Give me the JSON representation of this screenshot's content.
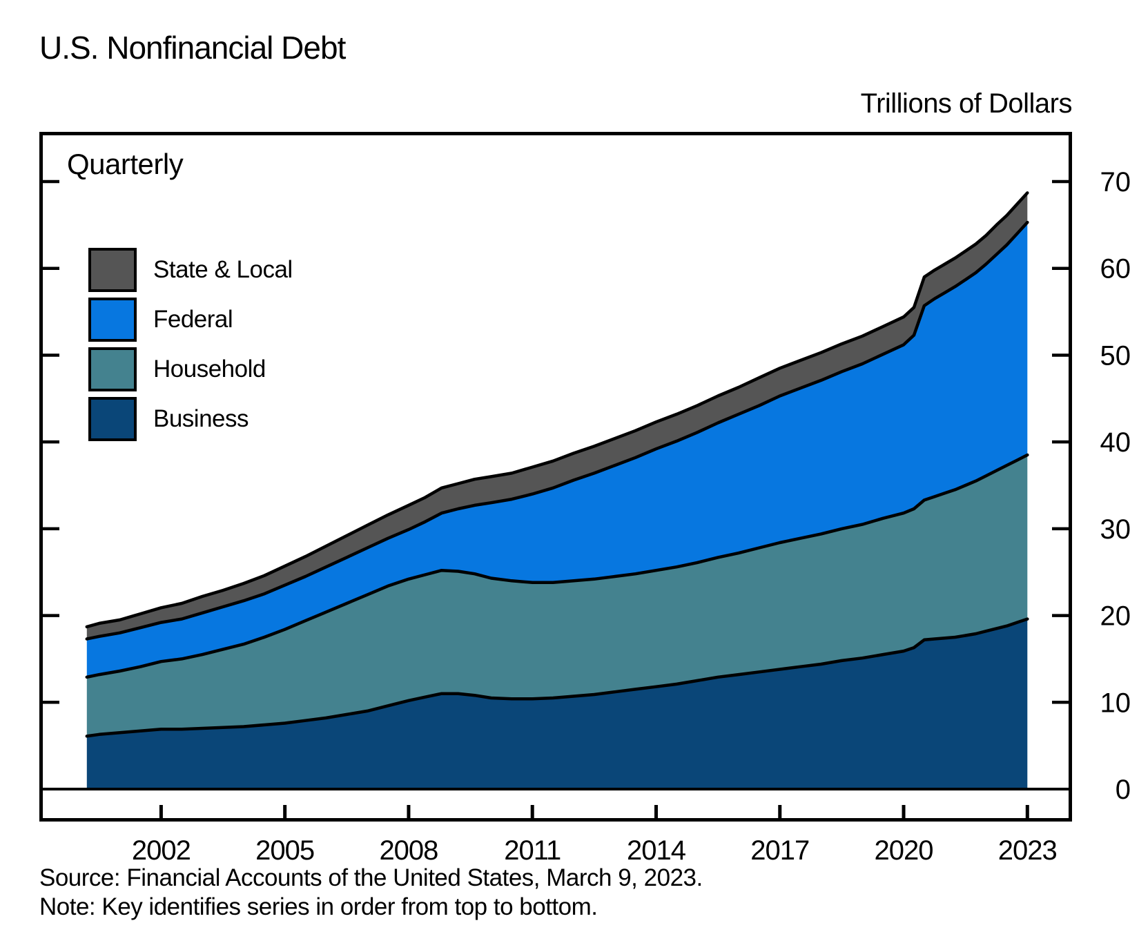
{
  "header": {
    "title": "U.S. Nonfinancial Debt",
    "unit_label": "Trillions of Dollars"
  },
  "plot": {
    "frequency_label": "Quarterly"
  },
  "legend": [
    {
      "label": "State & Local",
      "color": "#555555"
    },
    {
      "label": "Federal",
      "color": "#0777e0"
    },
    {
      "label": "Household",
      "color": "#44828f"
    },
    {
      "label": "Business",
      "color": "#0a4678"
    }
  ],
  "footer": {
    "source_line": "Source: Financial Accounts of the United States, March 9, 2023.",
    "note_line": "Note: Key identifies series in order from top to bottom."
  },
  "chart_data": {
    "type": "area",
    "stacked": true,
    "title": "U.S. Nonfinancial Debt",
    "ylabel": "Trillions of Dollars",
    "frequency": "Quarterly",
    "legend_position": "upper-left",
    "legend_note": "Key identifies series in order from top to bottom",
    "grid": false,
    "y_ticks": [
      0,
      10,
      20,
      30,
      40,
      50,
      60,
      70
    ],
    "x_ticks": [
      2002,
      2005,
      2008,
      2011,
      2014,
      2017,
      2020,
      2023
    ],
    "y_range_axis": [
      0,
      75
    ],
    "x_range_axis": [
      1999.1,
      2024.1
    ],
    "x_units": "year (quarterly observations, 2000Q1–2022Q4)",
    "y_units": "trillions of dollars",
    "x": [
      2000.2,
      2000.5,
      2001,
      2001.5,
      2002,
      2002.5,
      2003,
      2003.5,
      2004,
      2004.5,
      2005,
      2005.5,
      2006,
      2006.5,
      2007,
      2007.5,
      2008,
      2008.4,
      2008.8,
      2009.2,
      2009.6,
      2010,
      2010.5,
      2011,
      2011.5,
      2012,
      2012.5,
      2013,
      2013.5,
      2014,
      2014.5,
      2015,
      2015.5,
      2016,
      2016.5,
      2017,
      2017.5,
      2018,
      2018.5,
      2019,
      2019.5,
      2020,
      2020.25,
      2020.5,
      2020.75,
      2021,
      2021.25,
      2021.5,
      2021.75,
      2022,
      2022.25,
      2022.5,
      2022.75,
      2023
    ],
    "series": [
      {
        "name": "Business",
        "color": "#0a4678",
        "values": [
          6.1,
          6.3,
          6.5,
          6.7,
          6.9,
          6.9,
          7.0,
          7.1,
          7.2,
          7.4,
          7.6,
          7.9,
          8.2,
          8.6,
          9.0,
          9.6,
          10.2,
          10.6,
          11.0,
          11.0,
          10.8,
          10.5,
          10.4,
          10.4,
          10.5,
          10.7,
          10.9,
          11.2,
          11.5,
          11.8,
          12.1,
          12.5,
          12.9,
          13.2,
          13.5,
          13.8,
          14.1,
          14.4,
          14.8,
          15.1,
          15.5,
          15.9,
          16.3,
          17.2,
          17.3,
          17.4,
          17.5,
          17.7,
          17.9,
          18.2,
          18.5,
          18.8,
          19.2,
          19.6
        ]
      },
      {
        "name": "Household",
        "color": "#44828f",
        "values": [
          6.8,
          6.9,
          7.1,
          7.4,
          7.8,
          8.1,
          8.5,
          9.0,
          9.5,
          10.1,
          10.8,
          11.5,
          12.2,
          12.8,
          13.4,
          13.8,
          14.0,
          14.1,
          14.2,
          14.1,
          14.0,
          13.8,
          13.6,
          13.4,
          13.3,
          13.3,
          13.3,
          13.3,
          13.3,
          13.4,
          13.5,
          13.6,
          13.8,
          14.0,
          14.3,
          14.6,
          14.8,
          15.0,
          15.2,
          15.4,
          15.7,
          15.9,
          16.0,
          16.1,
          16.4,
          16.7,
          17.0,
          17.3,
          17.6,
          17.9,
          18.2,
          18.5,
          18.7,
          18.9
        ]
      },
      {
        "name": "Federal",
        "color": "#0777e0",
        "values": [
          4.4,
          4.4,
          4.4,
          4.5,
          4.5,
          4.6,
          4.8,
          4.9,
          5.0,
          5.0,
          5.1,
          5.1,
          5.2,
          5.3,
          5.4,
          5.5,
          5.7,
          6.1,
          6.6,
          7.2,
          7.9,
          8.7,
          9.4,
          10.2,
          10.9,
          11.6,
          12.2,
          12.8,
          13.4,
          14.0,
          14.5,
          15.0,
          15.5,
          16.0,
          16.4,
          16.9,
          17.3,
          17.7,
          18.1,
          18.5,
          18.9,
          19.4,
          20.0,
          22.4,
          22.8,
          23.1,
          23.4,
          23.7,
          24.0,
          24.4,
          24.9,
          25.4,
          26.1,
          26.8
        ]
      },
      {
        "name": "State & Local",
        "color": "#555555",
        "values": [
          1.4,
          1.5,
          1.5,
          1.6,
          1.7,
          1.8,
          1.9,
          1.9,
          2.0,
          2.1,
          2.2,
          2.3,
          2.4,
          2.5,
          2.6,
          2.7,
          2.8,
          2.8,
          2.9,
          2.9,
          3.0,
          3.0,
          3.0,
          3.1,
          3.1,
          3.1,
          3.1,
          3.1,
          3.1,
          3.1,
          3.1,
          3.1,
          3.1,
          3.1,
          3.2,
          3.2,
          3.2,
          3.2,
          3.2,
          3.2,
          3.2,
          3.2,
          3.2,
          3.3,
          3.3,
          3.3,
          3.3,
          3.3,
          3.3,
          3.3,
          3.4,
          3.4,
          3.4,
          3.4
        ]
      }
    ]
  }
}
